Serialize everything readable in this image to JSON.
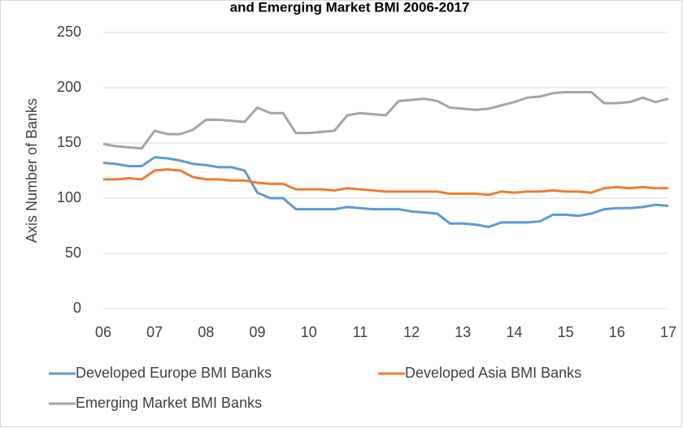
{
  "chart_data": {
    "type": "line",
    "title": "and Emerging Market BMI 2006-2017",
    "y_label": "Axis Number of Banks",
    "x": [
      6,
      6.25,
      6.5,
      6.75,
      7,
      7.25,
      7.5,
      7.75,
      8,
      8.25,
      8.5,
      8.75,
      9,
      9.25,
      9.5,
      9.75,
      10,
      10.25,
      10.5,
      10.75,
      11,
      11.25,
      11.5,
      11.75,
      12,
      12.25,
      12.5,
      12.75,
      13,
      13.25,
      13.5,
      13.75,
      14,
      14.25,
      14.5,
      14.75,
      15,
      15.25,
      15.5,
      15.75,
      16,
      16.25,
      16.5,
      16.75,
      17
    ],
    "series": [
      {
        "name": "Developed Europe BMI Banks",
        "color": "#5b9bd5",
        "values": [
          132,
          131,
          129,
          129,
          137,
          136,
          134,
          131,
          130,
          128,
          128,
          125,
          105,
          100,
          100,
          90,
          90,
          90,
          90,
          92,
          91,
          90,
          90,
          90,
          88,
          87,
          86,
          77,
          77,
          76,
          74,
          78,
          78,
          78,
          79,
          85,
          85,
          84,
          86,
          90,
          91,
          91,
          92,
          94,
          93
        ]
      },
      {
        "name": "Developed Asia BMI Banks",
        "color": "#ed7d31",
        "values": [
          117,
          117,
          118,
          117,
          125,
          126,
          125,
          119,
          117,
          117,
          116,
          116,
          114,
          113,
          113,
          108,
          108,
          108,
          107,
          109,
          108,
          107,
          106,
          106,
          106,
          106,
          106,
          104,
          104,
          104,
          103,
          106,
          105,
          106,
          106,
          107,
          106,
          106,
          105,
          109,
          110,
          109,
          110,
          109,
          109
        ]
      },
      {
        "name": "Emerging Market BMI Banks",
        "color": "#a5a5a5",
        "values": [
          149,
          147,
          146,
          145,
          161,
          158,
          158,
          162,
          171,
          171,
          170,
          169,
          182,
          177,
          177,
          159,
          159,
          160,
          161,
          175,
          177,
          176,
          175,
          188,
          189,
          190,
          188,
          182,
          181,
          180,
          181,
          184,
          187,
          191,
          192,
          195,
          196,
          196,
          196,
          186,
          186,
          187,
          191,
          187,
          190
        ]
      }
    ],
    "xlim": [
      6,
      17
    ],
    "xticks": [
      {
        "value": 6,
        "label": "06"
      },
      {
        "value": 7,
        "label": "07"
      },
      {
        "value": 8,
        "label": "08"
      },
      {
        "value": 9,
        "label": "09"
      },
      {
        "value": 10,
        "label": "10"
      },
      {
        "value": 11,
        "label": "11"
      },
      {
        "value": 12,
        "label": "12"
      },
      {
        "value": 13,
        "label": "13"
      },
      {
        "value": 14,
        "label": "14"
      },
      {
        "value": 15,
        "label": "15"
      },
      {
        "value": 16,
        "label": "16"
      },
      {
        "value": 17,
        "label": "17"
      }
    ],
    "ylim": [
      0,
      250
    ],
    "yticks": [
      0,
      50,
      100,
      150,
      200,
      250
    ],
    "grid": true
  }
}
